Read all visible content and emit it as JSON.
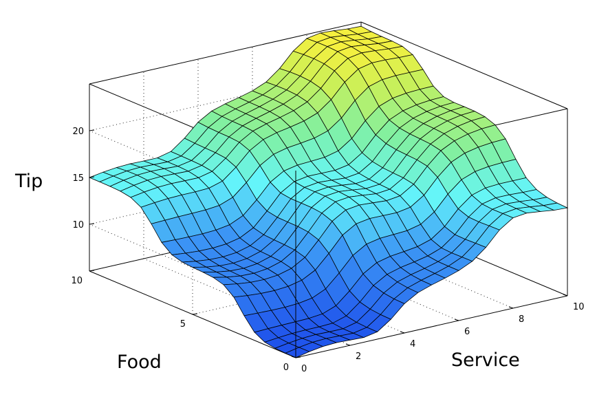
{
  "chart_data": {
    "type": "surface",
    "title": "",
    "xlabel": "Service",
    "ylabel": "Food",
    "zlabel": "Tip",
    "xlim": [
      0,
      10
    ],
    "ylim": [
      0,
      10
    ],
    "zlim": [
      5,
      25
    ],
    "x_ticks": [
      "0",
      "2",
      "4",
      "6",
      "8",
      "10"
    ],
    "y_ticks": [
      "0",
      "5",
      "10"
    ],
    "z_ticks": [
      "10",
      "15",
      "20"
    ],
    "grid": true,
    "colormap": "parula-like: blue (low) to cyan to green to yellow (high)",
    "z_min": 5,
    "z_max": 25,
    "z_at_corners": {
      "service0_food0": 5,
      "service10_food0": 15,
      "service0_food10": 15,
      "service10_food10": 25
    },
    "description_shape": "fuzzy-logic tipper surface; tip rises in steps with service and food"
  }
}
